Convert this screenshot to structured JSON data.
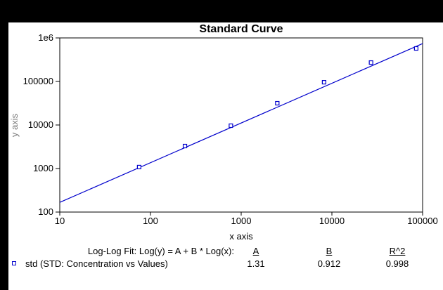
{
  "window": {
    "background": "#000000",
    "panel_background": "#ffffff"
  },
  "chart_data": {
    "type": "scatter",
    "title": "Standard Curve",
    "xlabel": "x axis",
    "ylabel": "y axis",
    "x_scale": "log",
    "y_scale": "log",
    "xlim": [
      10,
      100000
    ],
    "ylim": [
      100,
      1000000
    ],
    "grid": false,
    "x_ticks": [
      {
        "value": 10,
        "label": "10"
      },
      {
        "value": 100,
        "label": "100"
      },
      {
        "value": 1000,
        "label": "1000"
      },
      {
        "value": 10000,
        "label": "10000"
      },
      {
        "value": 100000,
        "label": "100000"
      }
    ],
    "y_ticks": [
      {
        "value": 100,
        "label": "100"
      },
      {
        "value": 1000,
        "label": "1000"
      },
      {
        "value": 10000,
        "label": "10000"
      },
      {
        "value": 100000,
        "label": "100000"
      },
      {
        "value": 1000000,
        "label": "1e6"
      }
    ],
    "series": [
      {
        "name": "std (STD: Concentration vs Values)",
        "marker": "open-square",
        "color": "#0000cc",
        "points": [
          {
            "x": 75,
            "y": 1080
          },
          {
            "x": 240,
            "y": 3280
          },
          {
            "x": 770,
            "y": 9640
          },
          {
            "x": 2500,
            "y": 31600
          },
          {
            "x": 8200,
            "y": 96000
          },
          {
            "x": 27000,
            "y": 272000
          },
          {
            "x": 85000,
            "y": 573000
          }
        ]
      }
    ],
    "fit": {
      "label": "Log-Log Fit: Log(y) = A + B * Log(x):",
      "A": 1.31,
      "B": 0.912,
      "col_a": "A",
      "col_b": "B",
      "col_r2": "R^2",
      "a": "1.31",
      "b": "0.912",
      "r2": "0.998"
    },
    "legend_position": "bottom-left"
  }
}
